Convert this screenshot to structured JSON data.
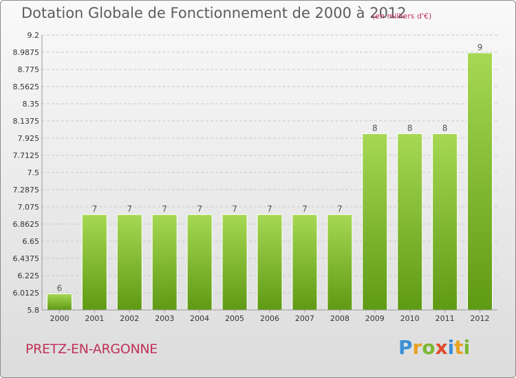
{
  "header": {
    "title": "Dotation Globale de Fonctionnement de 2000 à 2012",
    "unit_note": "(en milliers d'€)"
  },
  "footer": {
    "city": "PRETZ-EN-ARGONNE",
    "logo_letters": [
      "P",
      "r",
      "o",
      "x",
      "i",
      "t",
      "i"
    ],
    "logo_colors": [
      "#3a8fd8",
      "#e8a020",
      "#7ab830",
      "#e04a2a",
      "#3a8fd8",
      "#e8a020",
      "#7ab830"
    ]
  },
  "colors": {
    "bar_top": "#a6d854",
    "bar_bottom": "#5f9a14",
    "grid": "#c8c8c8",
    "title": "#5c5c5c",
    "accent": "#c0305a"
  },
  "chart_data": {
    "type": "bar",
    "title": "Dotation Globale de Fonctionnement de 2000 à 2012",
    "subtitle": "(en milliers d'€)",
    "xlabel": "",
    "ylabel": "",
    "categories": [
      "2000",
      "2001",
      "2002",
      "2003",
      "2004",
      "2005",
      "2006",
      "2007",
      "2008",
      "2009",
      "2010",
      "2011",
      "2012"
    ],
    "values": [
      6,
      7,
      7,
      7,
      7,
      7,
      7,
      7,
      7,
      8,
      8,
      8,
      9
    ],
    "data_labels": [
      "6",
      "7",
      "7",
      "7",
      "7",
      "7",
      "7",
      "7",
      "7",
      "8",
      "8",
      "8",
      "9"
    ],
    "bar_tops": [
      6.0,
      6.98,
      6.98,
      6.98,
      6.98,
      6.98,
      6.98,
      6.98,
      6.98,
      7.98,
      7.98,
      7.98,
      8.98
    ],
    "ylim": [
      5.8,
      9.2
    ],
    "yticks": [
      "5.8",
      "6.0125",
      "6.225",
      "6.4375",
      "6.65",
      "6.8625",
      "7.075",
      "7.2875",
      "7.5",
      "7.7125",
      "7.925",
      "8.1375",
      "8.35",
      "8.5625",
      "8.775",
      "8.9875",
      "9.2"
    ],
    "grid": true,
    "legend": "none"
  }
}
